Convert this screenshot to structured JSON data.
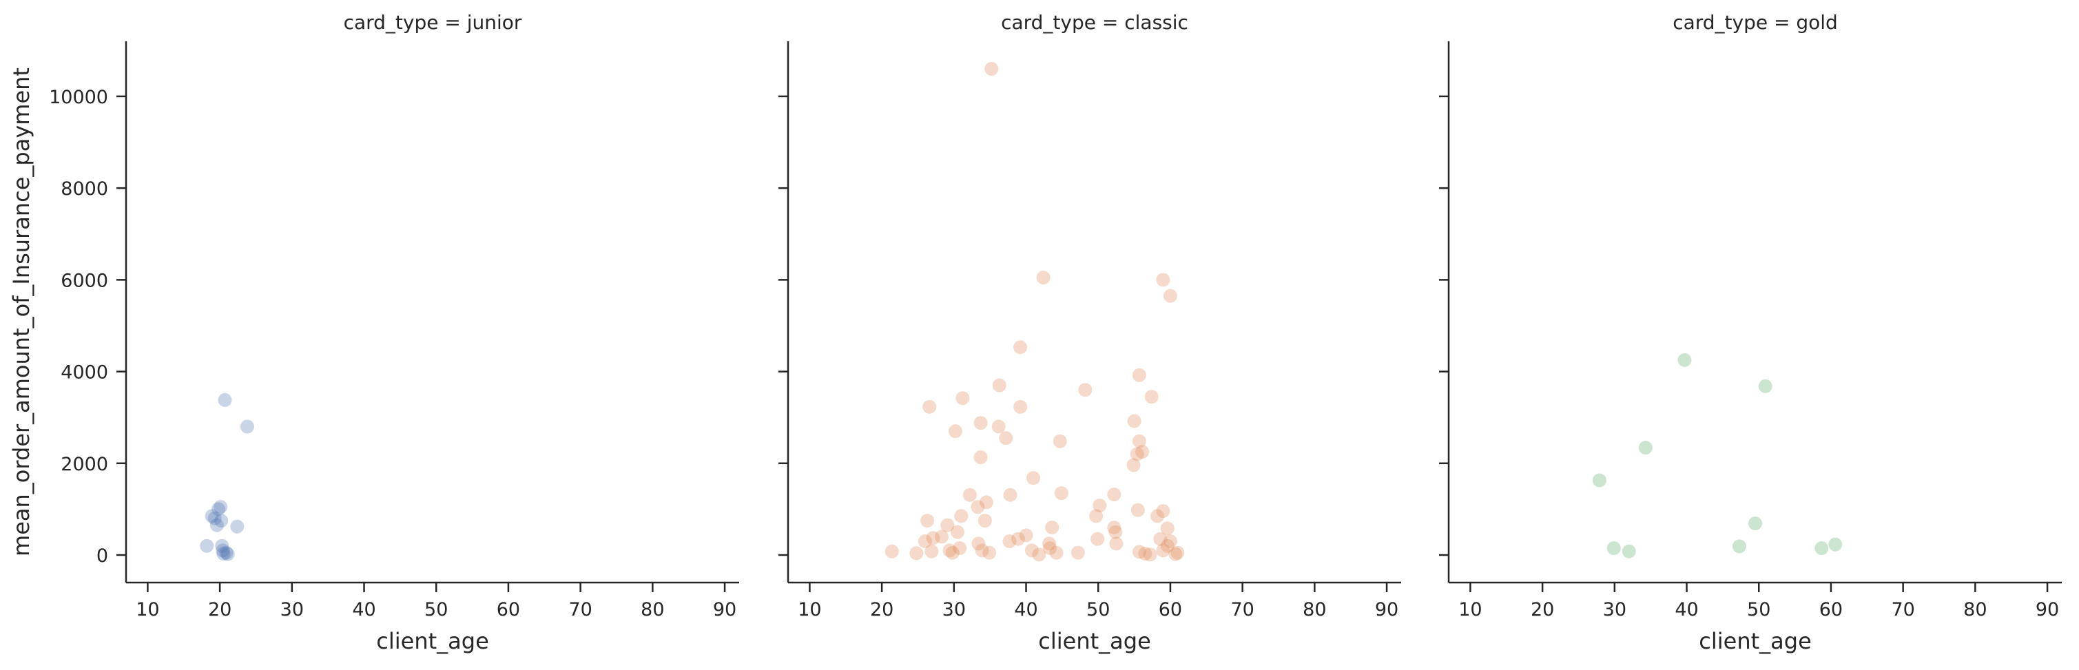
{
  "chart_data": {
    "type": "scatter",
    "facet_variable": "card_type",
    "xlabel": "client_age",
    "ylabel": "mean_order_amount_of_Insurance_payment",
    "xlim": [
      7,
      92
    ],
    "ylim": [
      -600,
      11200
    ],
    "xticks": [
      10,
      20,
      30,
      40,
      50,
      60,
      70,
      80,
      90
    ],
    "yticks": [
      0,
      2000,
      4000,
      6000,
      8000,
      10000
    ],
    "grid": false,
    "legend": "none",
    "facets": [
      {
        "title": "card_type = junior",
        "color": "#4c72b0",
        "points": [
          [
            18.2,
            200
          ],
          [
            18.9,
            850
          ],
          [
            19.3,
            800
          ],
          [
            19.6,
            650
          ],
          [
            19.8,
            1000
          ],
          [
            20.1,
            1050
          ],
          [
            20.2,
            750
          ],
          [
            20.3,
            200
          ],
          [
            20.4,
            100
          ],
          [
            20.5,
            30
          ],
          [
            20.7,
            3380
          ],
          [
            20.9,
            50
          ],
          [
            21.1,
            20
          ],
          [
            22.4,
            620
          ],
          [
            23.8,
            2800
          ]
        ]
      },
      {
        "title": "card_type = classic",
        "color": "#dd8452",
        "points": [
          [
            35.2,
            10600
          ],
          [
            42.4,
            6050
          ],
          [
            59.0,
            6000
          ],
          [
            60.0,
            5650
          ],
          [
            39.2,
            4530
          ],
          [
            55.7,
            3920
          ],
          [
            36.3,
            3700
          ],
          [
            48.2,
            3600
          ],
          [
            57.4,
            3450
          ],
          [
            31.2,
            3420
          ],
          [
            26.6,
            3230
          ],
          [
            39.2,
            3230
          ],
          [
            55.0,
            2920
          ],
          [
            33.7,
            2880
          ],
          [
            36.2,
            2800
          ],
          [
            30.2,
            2700
          ],
          [
            37.2,
            2550
          ],
          [
            44.7,
            2480
          ],
          [
            55.7,
            2480
          ],
          [
            56.1,
            2250
          ],
          [
            55.4,
            2200
          ],
          [
            33.7,
            2130
          ],
          [
            54.9,
            1960
          ],
          [
            41.0,
            1680
          ],
          [
            44.9,
            1350
          ],
          [
            52.2,
            1320
          ],
          [
            32.2,
            1310
          ],
          [
            37.8,
            1310
          ],
          [
            50.2,
            1080
          ],
          [
            34.5,
            1150
          ],
          [
            33.3,
            1050
          ],
          [
            55.5,
            980
          ],
          [
            59.0,
            960
          ],
          [
            58.2,
            850
          ],
          [
            31.0,
            850
          ],
          [
            49.7,
            850
          ],
          [
            26.3,
            750
          ],
          [
            34.3,
            750
          ],
          [
            29.1,
            650
          ],
          [
            52.2,
            600
          ],
          [
            59.6,
            580
          ],
          [
            43.6,
            600
          ],
          [
            30.5,
            500
          ],
          [
            27.1,
            370
          ],
          [
            52.4,
            500
          ],
          [
            28.3,
            400
          ],
          [
            40.0,
            430
          ],
          [
            37.7,
            300
          ],
          [
            38.9,
            350
          ],
          [
            58.6,
            350
          ],
          [
            26.0,
            300
          ],
          [
            43.2,
            250
          ],
          [
            52.5,
            250
          ],
          [
            60.0,
            300
          ],
          [
            49.9,
            350
          ],
          [
            33.4,
            250
          ],
          [
            43.3,
            150
          ],
          [
            59.6,
            200
          ],
          [
            30.8,
            150
          ],
          [
            26.9,
            80
          ],
          [
            29.4,
            100
          ],
          [
            40.8,
            100
          ],
          [
            29.8,
            50
          ],
          [
            21.4,
            80
          ],
          [
            24.8,
            40
          ],
          [
            34.9,
            50
          ],
          [
            33.9,
            100
          ],
          [
            44.2,
            50
          ],
          [
            55.7,
            70
          ],
          [
            47.2,
            50
          ],
          [
            56.5,
            30
          ],
          [
            61.0,
            50
          ],
          [
            41.8,
            10
          ],
          [
            60.7,
            20
          ],
          [
            57.2,
            10
          ],
          [
            59.0,
            100
          ]
        ]
      },
      {
        "title": "card_type = gold",
        "color": "#55a868",
        "points": [
          [
            39.7,
            4250
          ],
          [
            50.9,
            3680
          ],
          [
            34.3,
            2340
          ],
          [
            27.9,
            1630
          ],
          [
            49.5,
            690
          ],
          [
            60.6,
            230
          ],
          [
            47.3,
            190
          ],
          [
            58.7,
            150
          ],
          [
            29.9,
            150
          ],
          [
            32.0,
            80
          ]
        ]
      }
    ]
  }
}
